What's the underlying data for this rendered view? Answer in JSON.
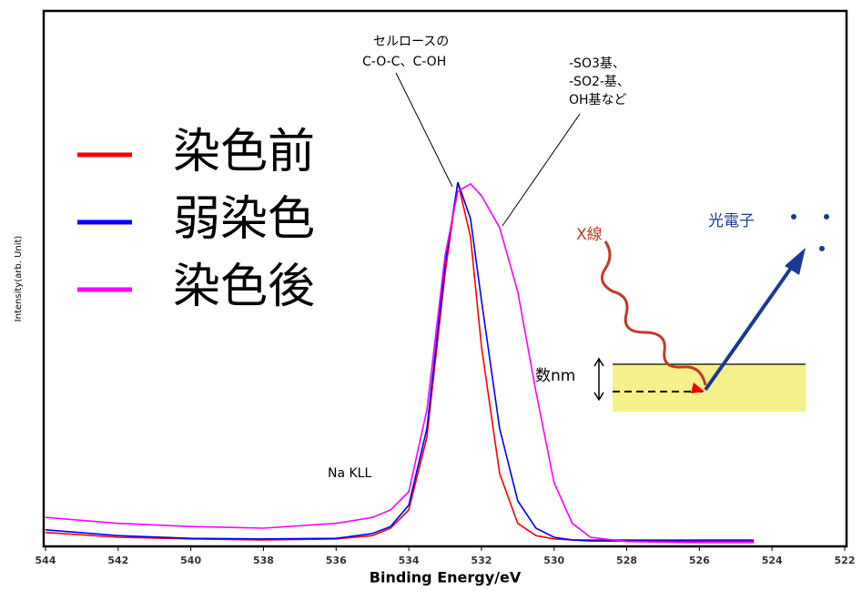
{
  "chart_data": {
    "type": "line",
    "xlabel": "Binding Energy/eV",
    "ylabel": "Intensity(arb. Unit)",
    "x": [
      544,
      542,
      540,
      538,
      536,
      535,
      534.5,
      534,
      533.5,
      533,
      532.65,
      532.3,
      532,
      531.5,
      531,
      530.5,
      530,
      529.5,
      529,
      528,
      526,
      524.5
    ],
    "series": [
      {
        "name": "染色前",
        "color": "#ff0000",
        "values": [
          2.6,
          1.7,
          1.4,
          1.2,
          1.4,
          2.0,
          3.4,
          6.8,
          20.4,
          51,
          68,
          57.8,
          37.4,
          13.6,
          4.3,
          2.0,
          1.4,
          1.2,
          1.2,
          1.2,
          1.2,
          1.2
        ]
      },
      {
        "name": "弱染色",
        "color": "#0000ff",
        "values": [
          3.1,
          2.0,
          1.5,
          1.4,
          1.5,
          2.4,
          3.7,
          7.7,
          22,
          52.7,
          68,
          61.2,
          46,
          22,
          8.5,
          3.4,
          1.7,
          1.2,
          1.0,
          1.0,
          1.0,
          1.0
        ]
      },
      {
        "name": "染色後",
        "color": "#ff00ff",
        "values": [
          5.4,
          4.3,
          3.7,
          3.4,
          4.3,
          5.4,
          6.8,
          10.2,
          25.5,
          54.4,
          66.3,
          67.7,
          65.5,
          59.5,
          47.6,
          28.9,
          11.9,
          4.3,
          1.7,
          0.9,
          0.7,
          0.7
        ]
      }
    ],
    "xlim": [
      544,
      522
    ],
    "ylim": [
      0,
      100
    ],
    "xticks": [
      544,
      542,
      540,
      538,
      536,
      534,
      532,
      530,
      528,
      526,
      524,
      522
    ],
    "annotations": [
      "セルロースの",
      "C-O-C、C-OH",
      "-SO3基、",
      "-SO2-基、",
      "OH基など",
      "Na KLL"
    ],
    "inset": {
      "xray": "X線",
      "photoelectron": "光電子",
      "depth": "数nm"
    }
  }
}
